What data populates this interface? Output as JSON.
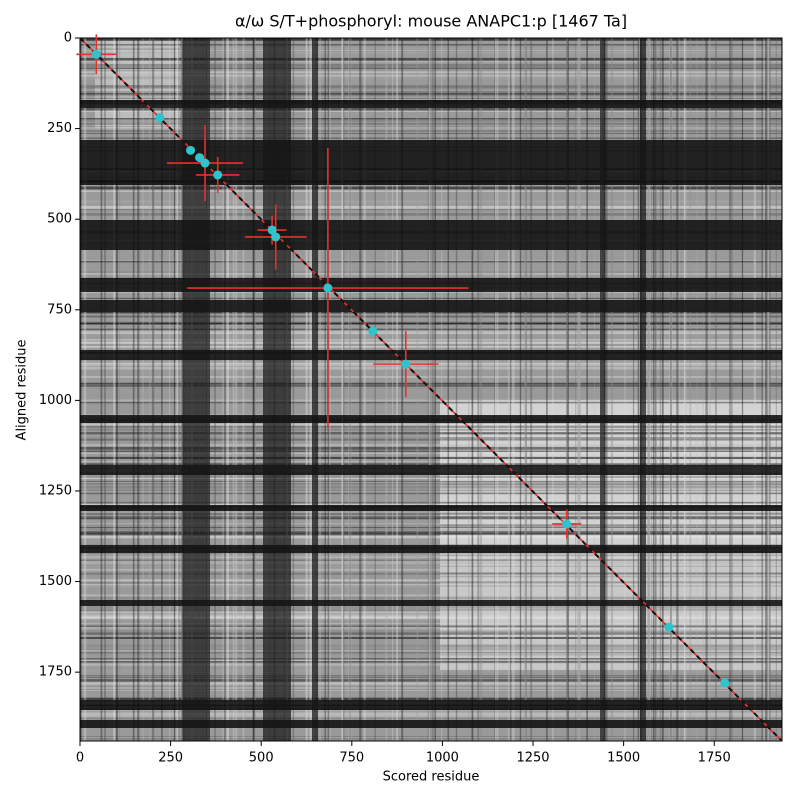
{
  "chart_data": {
    "type": "scatter",
    "title": "α/ω S/T+phosphoryl: mouse ANAPC1:p [1467 Ta]",
    "x_label": "Scored residue",
    "y_label": "Aligned residue",
    "xlim": [
      0,
      1937
    ],
    "ylim": [
      1940,
      0
    ],
    "xticks": [
      0,
      250,
      500,
      750,
      1000,
      1250,
      1500,
      1750
    ],
    "yticks": [
      0,
      250,
      500,
      750,
      1000,
      1250,
      1500,
      1750
    ],
    "lines": [
      {
        "color": "#e8302c",
        "dashed": false,
        "x": [
          0,
          1937
        ],
        "y": [
          0,
          1940
        ]
      },
      {
        "color": "#111111",
        "dashed": true,
        "x": [
          0,
          1937
        ],
        "y": [
          0,
          1940
        ]
      }
    ],
    "series": [
      {
        "color": "#2ec4cc",
        "error_color": "#e8302c",
        "x": [
          45,
          220,
          305,
          330,
          345,
          380,
          530,
          540,
          684,
          808,
          899,
          1343,
          1625,
          1779
        ],
        "values": [
          45,
          220,
          310,
          330,
          345,
          378,
          530,
          549,
          690,
          809,
          900,
          1341,
          1626,
          1780
        ],
        "xerr": [
          55,
          0,
          0,
          0,
          105,
          60,
          40,
          85,
          388,
          0,
          90,
          40,
          0,
          0
        ],
        "yerr": [
          55,
          0,
          0,
          0,
          105,
          50,
          40,
          90,
          387,
          0,
          91,
          40,
          0,
          0
        ]
      }
    ]
  }
}
